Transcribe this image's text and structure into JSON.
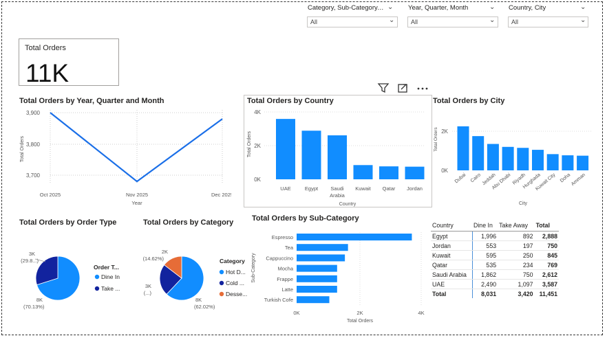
{
  "slicers": [
    {
      "title": "Category, Sub-Category, P...",
      "value": "All"
    },
    {
      "title": "Year, Quarter, Month",
      "value": "All"
    },
    {
      "title": "Country, City",
      "value": "All"
    }
  ],
  "card": {
    "label": "Total Orders",
    "value": "11K"
  },
  "colors": {
    "primary": "#118DFF",
    "dark": "#12239E",
    "orange": "#E66C37",
    "line": "#1a6fe8"
  },
  "line_chart": {
    "title": "Total Orders by Year, Quarter and Month",
    "xlabel": "Year",
    "ylabel": "Total Orders",
    "y_ticks": [
      "3,900",
      "3,800",
      "3,700"
    ],
    "x_ticks": [
      "Oct 2025",
      "Nov 2025",
      "Dec 2025"
    ]
  },
  "country_chart": {
    "title": "Total Orders by Country",
    "xlabel": "Country",
    "ylabel": "Total Orders",
    "y_ticks": [
      "4K",
      "2K",
      "0K"
    ]
  },
  "city_chart": {
    "title": "Total Orders by City",
    "xlabel": "City",
    "ylabel": "Total Orders",
    "y_ticks": [
      "2K",
      "0K"
    ]
  },
  "order_type_chart": {
    "title": "Total Orders by Order Type",
    "legend_title": "Order T...",
    "legend": [
      "Dine In",
      "Take ..."
    ],
    "labels": {
      "small": "3K",
      "small_pct": "(29.8...)",
      "large": "8K",
      "large_pct": "(70.13%)"
    }
  },
  "category_chart": {
    "title": "Total Orders by Category",
    "legend_title": "Category",
    "legend": [
      "Hot D...",
      "Cold ...",
      "Desse..."
    ],
    "labels": {
      "a": "2K",
      "a_pct": "(14.62%)",
      "b": "3K",
      "b_pct": "(...)",
      "c": "8K",
      "c_pct": "(62.02%)"
    }
  },
  "subcat_chart": {
    "title": "Total Orders by Sub-Category",
    "xlabel": "Total Orders",
    "ylabel": "Sub-Category",
    "x_ticks": [
      "0K",
      "2K",
      "4K"
    ]
  },
  "table": {
    "headers": [
      "Country",
      "Dine In",
      "Take Away",
      "Total"
    ],
    "rows": [
      [
        "Egypt",
        "1,996",
        "892",
        "2,888"
      ],
      [
        "Jordan",
        "553",
        "197",
        "750"
      ],
      [
        "Kuwait",
        "595",
        "250",
        "845"
      ],
      [
        "Qatar",
        "535",
        "234",
        "769"
      ],
      [
        "Saudi Arabia",
        "1,862",
        "750",
        "2,612"
      ],
      [
        "UAE",
        "2,490",
        "1,097",
        "3,587"
      ]
    ],
    "total": [
      "Total",
      "8,031",
      "3,420",
      "11,451"
    ]
  },
  "chart_data": [
    {
      "type": "line",
      "title": "Total Orders by Year, Quarter and Month",
      "x": [
        "Oct 2025",
        "Nov 2025",
        "Dec 2025"
      ],
      "values": [
        3900,
        3680,
        3880
      ],
      "ylim": [
        3680,
        3900
      ],
      "xlabel": "Year",
      "ylabel": "Total Orders"
    },
    {
      "type": "bar",
      "title": "Total Orders by Country",
      "categories": [
        "UAE",
        "Egypt",
        "Saudi Arabia",
        "Kuwait",
        "Qatar",
        "Jordan"
      ],
      "values": [
        3587,
        2888,
        2612,
        845,
        769,
        750
      ],
      "ylim": [
        0,
        4000
      ],
      "xlabel": "Country",
      "ylabel": "Total Orders"
    },
    {
      "type": "bar",
      "title": "Total Orders by City",
      "categories": [
        "Dubai",
        "Cairo",
        "Jeddah",
        "Abu Dhabi",
        "Riyadh",
        "Hurghada",
        "Kuwait City",
        "Doha",
        "Amman"
      ],
      "values": [
        2250,
        1750,
        1350,
        1200,
        1150,
        1050,
        830,
        770,
        750
      ],
      "ylim": [
        0,
        3000
      ],
      "xlabel": "City",
      "ylabel": "Total Orders"
    },
    {
      "type": "pie",
      "title": "Total Orders by Order Type",
      "categories": [
        "Dine In",
        "Take ..."
      ],
      "values": [
        70.13,
        29.87
      ]
    },
    {
      "type": "pie",
      "title": "Total Orders by Category",
      "categories": [
        "Hot D...",
        "Cold ...",
        "Desse..."
      ],
      "values": [
        62.02,
        23.36,
        14.62
      ]
    },
    {
      "type": "bar",
      "title": "Total Orders by Sub-Category",
      "categories": [
        "Espresso",
        "Tea",
        "Cappuccino",
        "Mocha",
        "Frappe",
        "Latte",
        "Turkish Cofe"
      ],
      "values": [
        3700,
        1650,
        1550,
        1300,
        1300,
        1300,
        1050
      ],
      "xlim": [
        0,
        4000
      ],
      "xlabel": "Total Orders",
      "ylabel": "Sub-Category"
    }
  ]
}
